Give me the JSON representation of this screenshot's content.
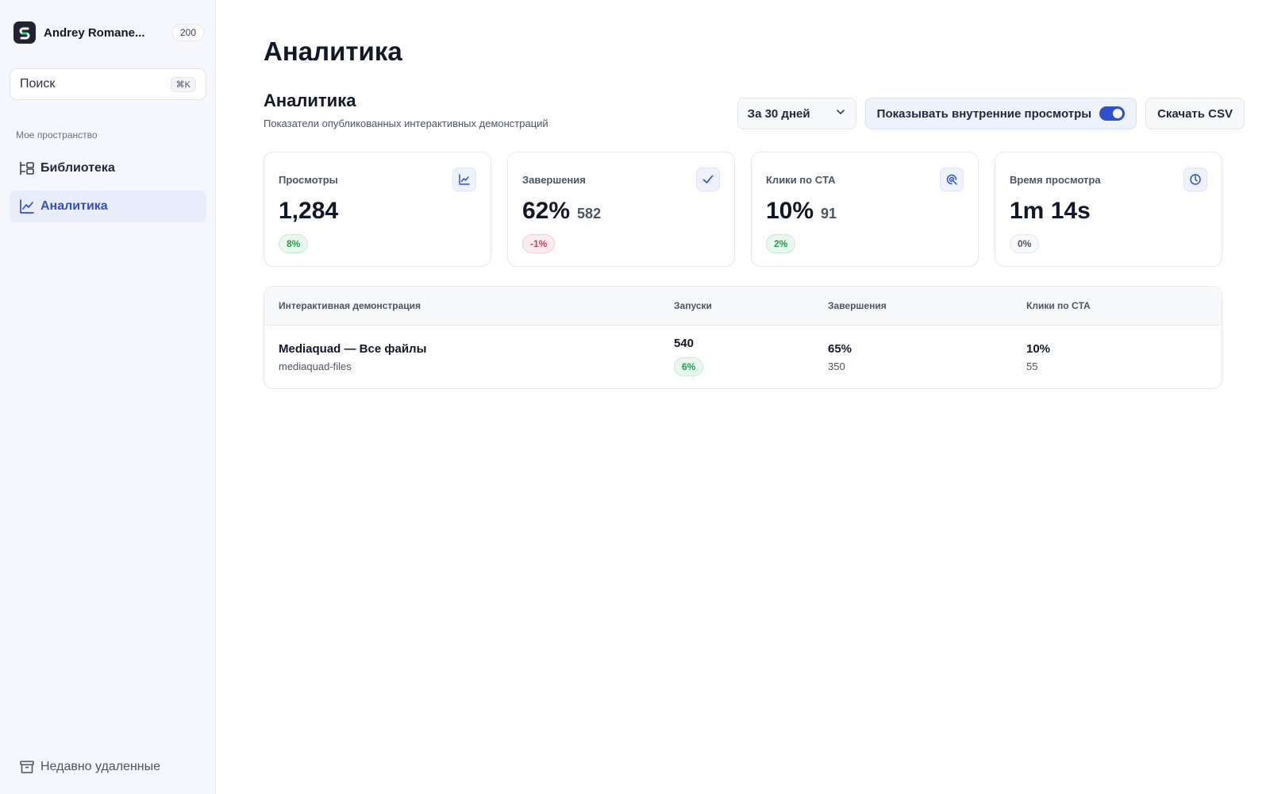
{
  "sidebar": {
    "workspace_name": "Andrey Romane...",
    "workspace_count": "200",
    "search": {
      "placeholder": "Поиск",
      "shortcut": "⌘K"
    },
    "section_label": "Мое пространство",
    "nav": {
      "library": {
        "label": "Библиотека",
        "icon": "library-icon"
      },
      "analytics": {
        "label": "Аналитика",
        "icon": "chart-line-icon",
        "active": true
      }
    },
    "recently_deleted": {
      "label": "Недавно удаленные",
      "icon": "archive-icon"
    }
  },
  "main": {
    "page_title": "Аналитика",
    "section_title": "Аналитика",
    "section_description": "Показатели опубликованных интерактивных демонстраций",
    "toolbar": {
      "period": "За 30 дней",
      "internal_views_label": "Показывать внутренние просмотры",
      "internal_views_enabled": true,
      "download_csv": "Скачать CSV"
    },
    "stats": [
      {
        "label": "Просмотры",
        "value": "1,284",
        "secondary": "",
        "change": "8%",
        "trend": "up",
        "icon": "chart-line-icon"
      },
      {
        "label": "Завершения",
        "value": "62%",
        "secondary": "582",
        "change": "-1%",
        "trend": "down",
        "icon": "check-icon"
      },
      {
        "label": "Клики по CTA",
        "value": "10%",
        "secondary": "91",
        "change": "2%",
        "trend": "up",
        "icon": "click-target-icon"
      },
      {
        "label": "Время просмотра",
        "value": "1m 14s",
        "secondary": "",
        "change": "0%",
        "trend": "flat",
        "icon": "timer-icon"
      }
    ],
    "table": {
      "headers": [
        "Интерактивная демонстрация",
        "Запуски",
        "Завершения",
        "Клики по CTA"
      ],
      "rows": [
        {
          "title": "Mediaquad — Все файлы",
          "slug": "mediaquad-files",
          "launches": "540",
          "launches_change": "6%",
          "completions": "65%",
          "completions_count": "350",
          "cta_clicks": "10%",
          "cta_clicks_count": "55"
        }
      ]
    }
  },
  "colors": {
    "accent": "#2f4fd0",
    "positive": "#1f9d4f",
    "negative": "#d63a50",
    "sidebar_bg": "#f5f7fc"
  }
}
